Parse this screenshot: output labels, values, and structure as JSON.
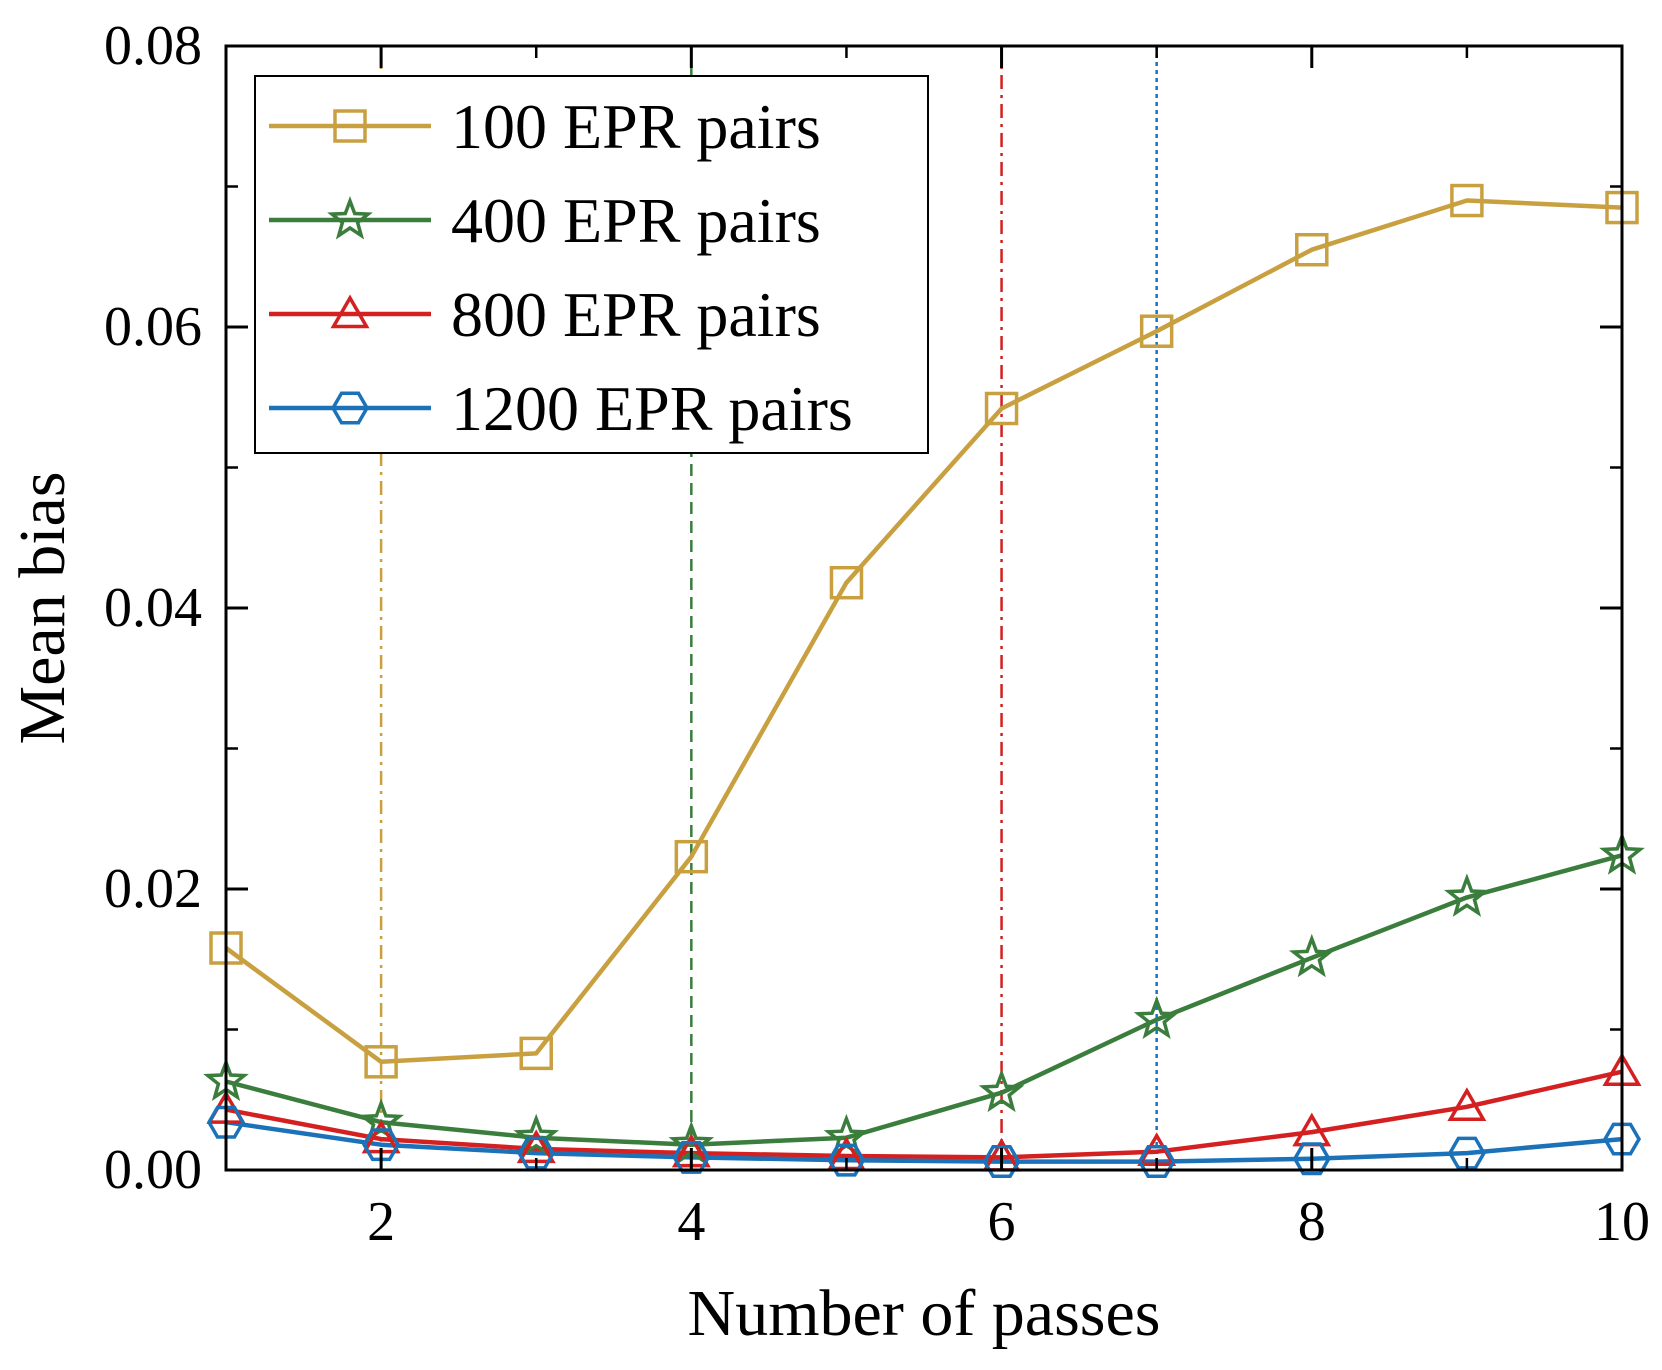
{
  "chart_data": {
    "type": "line",
    "title": "",
    "xlabel": "Number of passes",
    "ylabel": "Mean bias",
    "xlim": [
      1,
      10
    ],
    "ylim": [
      0,
      0.08
    ],
    "xticks": [
      2,
      4,
      6,
      8,
      10
    ],
    "xtick_labels": [
      "2",
      "4",
      "6",
      "8",
      "10"
    ],
    "yticks": [
      0,
      0.02,
      0.04,
      0.06,
      0.08
    ],
    "ytick_labels": [
      "0.00",
      "0.02",
      "0.04",
      "0.06",
      "0.08"
    ],
    "grid": false,
    "legend_position": "top-left",
    "x": [
      1,
      2,
      3,
      4,
      5,
      6,
      7,
      8,
      9,
      10
    ],
    "series": [
      {
        "name": "100 EPR pairs",
        "color": "#C9A040",
        "marker": "square",
        "values": [
          0.0158,
          0.0077,
          0.0083,
          0.0223,
          0.0418,
          0.0542,
          0.0597,
          0.0655,
          0.069,
          0.0685
        ]
      },
      {
        "name": "400 EPR pairs",
        "color": "#3A7D3C",
        "marker": "star",
        "values": [
          0.0063,
          0.0034,
          0.0023,
          0.0018,
          0.0023,
          0.0055,
          0.0107,
          0.0151,
          0.0194,
          0.0224
        ]
      },
      {
        "name": "800 EPR pairs",
        "color": "#D42020",
        "marker": "triangle",
        "values": [
          0.0043,
          0.0022,
          0.0015,
          0.0012,
          0.001,
          0.0009,
          0.0013,
          0.0027,
          0.0045,
          0.007
        ]
      },
      {
        "name": "1200 EPR pairs",
        "color": "#1B72B8",
        "marker": "hexagon",
        "values": [
          0.0034,
          0.0018,
          0.0012,
          0.0009,
          0.0007,
          0.0006,
          0.0006,
          0.0008,
          0.0012,
          0.0022
        ]
      }
    ],
    "reference_lines": [
      {
        "x": 2,
        "color": "#C9A040",
        "style": "dash-dot"
      },
      {
        "x": 4,
        "color": "#3A7D3C",
        "style": "dashed"
      },
      {
        "x": 6,
        "color": "#D42020",
        "style": "dash-dot"
      },
      {
        "x": 7,
        "color": "#1B72B8",
        "style": "dotted"
      }
    ]
  }
}
